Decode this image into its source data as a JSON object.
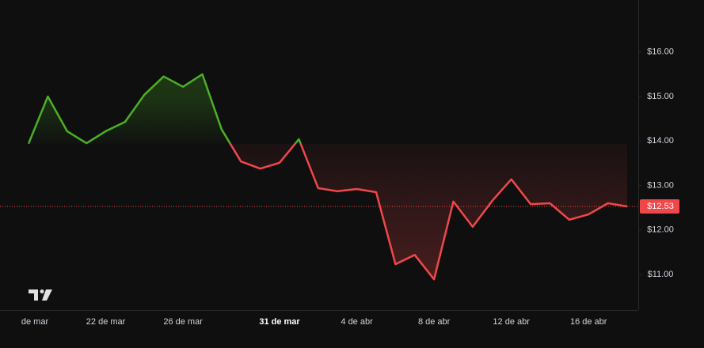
{
  "chart_data": {
    "type": "baseline",
    "categories": [
      "de mar",
      null,
      null,
      null,
      "22 de mar",
      null,
      null,
      null,
      "26 de mar",
      null,
      null,
      null,
      null,
      "31 de mar",
      null,
      null,
      null,
      "4 de abr",
      null,
      null,
      null,
      "8 de abr",
      null,
      null,
      null,
      "12 de abr",
      null,
      null,
      null,
      "16 de abr",
      null,
      null
    ],
    "bold_category": 13,
    "values": [
      13.94,
      15.0,
      14.22,
      13.95,
      14.22,
      14.43,
      15.04,
      15.45,
      15.22,
      15.5,
      14.26,
      13.54,
      13.38,
      13.51,
      14.04,
      12.94,
      12.87,
      12.92,
      12.85,
      11.23,
      11.44,
      10.89,
      12.64,
      12.07,
      12.65,
      13.14,
      12.58,
      12.6,
      12.23,
      12.35,
      12.6,
      12.53
    ],
    "last_label": "$12.53",
    "up_color": "#4caf26",
    "down_color": "#f0474a",
    "ylim": [
      10.2,
      17.17
    ],
    "yticks": [
      {
        "value": 11,
        "label": "$11.00"
      },
      {
        "value": 12,
        "label": "$12.00"
      },
      {
        "value": 13,
        "label": "$13.00"
      },
      {
        "value": 14,
        "label": "$14.00"
      },
      {
        "value": 15,
        "label": "$15.00"
      },
      {
        "value": 16,
        "label": "$16.00"
      }
    ]
  }
}
